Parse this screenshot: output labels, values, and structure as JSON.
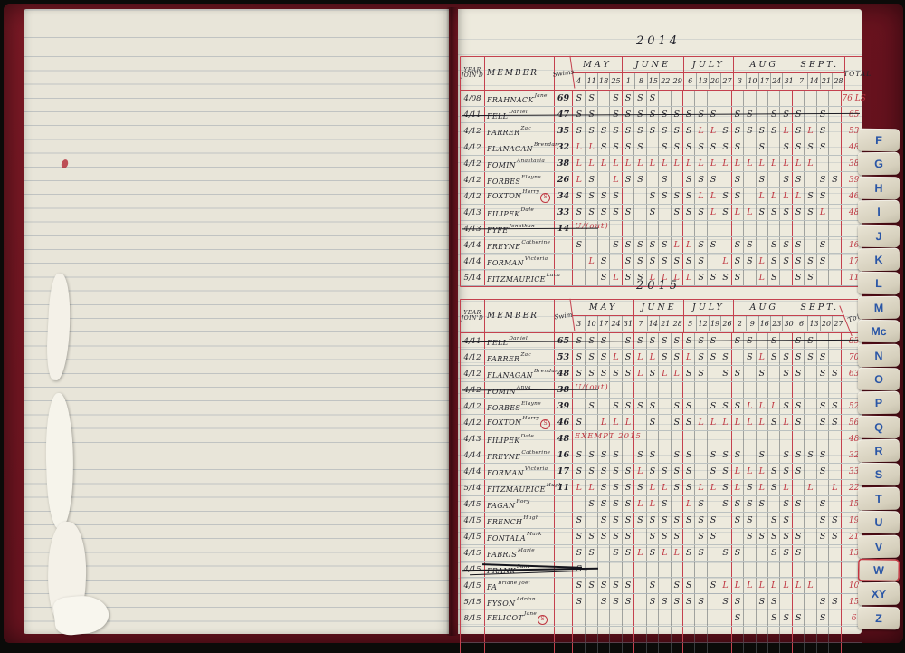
{
  "index_tabs": {
    "letters": [
      "F",
      "G",
      "H",
      "I",
      "J",
      "K",
      "L",
      "M",
      "Mc",
      "N",
      "O",
      "P",
      "Q",
      "R",
      "S",
      "T",
      "U",
      "V",
      "W",
      "XY",
      "Z"
    ],
    "highlighted": "W"
  },
  "colors": {
    "table_rule_red": "#c4414e",
    "red_ink": "#bf3540",
    "black_ink": "#23232b",
    "tab_letter_blue": "#2a56a6"
  },
  "legend": {
    "present_mark": "S",
    "late_mark": "L"
  },
  "tables": [
    {
      "title": "2014",
      "headers": {
        "join_line1": "YEAR",
        "join_line2": "JOIN'D",
        "member": "MEMBER",
        "swims": "Swims",
        "total": "TOTAL"
      },
      "months": [
        {
          "label": "MAY",
          "dates": [
            "4",
            "11",
            "18",
            "25"
          ]
        },
        {
          "label": "JUNE",
          "dates": [
            "1",
            "8",
            "15",
            "22",
            "29"
          ]
        },
        {
          "label": "JULY",
          "dates": [
            "6",
            "13",
            "20",
            "27"
          ]
        },
        {
          "label": "AUG",
          "dates": [
            "3",
            "10",
            "17",
            "24",
            "31"
          ]
        },
        {
          "label": "SEPT.",
          "dates": [
            "7",
            "14",
            "21",
            "28"
          ]
        }
      ],
      "rows": [
        {
          "joined": "4/08",
          "surname": "FRAHNACK",
          "first": "Jane",
          "swims": "69",
          "marks": "SS.SSSS...............",
          "total": "76 LS"
        },
        {
          "joined": "4/11",
          "surname": "FELL",
          "first": "Daniel",
          "swims": "47",
          "marks": "SS.SSSSSSSSS.SS.SSS.S.",
          "total": "65",
          "struck": "full"
        },
        {
          "joined": "4/12",
          "surname": "FARRER",
          "first": "Zac",
          "swims": "35",
          "marks": "SSSSSSSSSSLLSSSSSLSLS.",
          "total": "53"
        },
        {
          "joined": "4/12",
          "surname": "FLANAGAN",
          "first": "Brendan",
          "swims": "32",
          "marks": "LLSSSS.SSSSSSS.S.SSSS.",
          "total": "48"
        },
        {
          "joined": "4/12",
          "surname": "FOMIN",
          "first": "Anastasia",
          "swims": "38",
          "marks": "LLLLLLLLLLLLLLLLLLLL..",
          "total": "38"
        },
        {
          "joined": "4/12",
          "surname": "FORBES",
          "first": "Elayne",
          "swims": "26",
          "marks": "LS.LSS.S.SSS.S.S.SS.SS",
          "total": "39"
        },
        {
          "joined": "4/12",
          "surname": "FOXTON",
          "first": "Harry",
          "swims": "34",
          "marks": "SSSS..SSSSLLSS.LLLLSS.",
          "total": "46",
          "circled": true
        },
        {
          "joined": "4/13",
          "surname": "FILIPEK",
          "first": "Dale",
          "swims": "33",
          "marks": "SSSSS.S.SSSLSLLSSSSSL.",
          "total": "48"
        },
        {
          "joined": "4/13",
          "surname": "FYFE",
          "first": "Jonathan",
          "swims": "14",
          "marks": "",
          "note": "U/(out)",
          "total": "",
          "struck": "name"
        },
        {
          "joined": "4/14",
          "surname": "FREYNE",
          "first": "Catherine",
          "swims": "",
          "marks": "S..SSSSSLLSS.SS.SSS.S.",
          "total": "16"
        },
        {
          "joined": "4/14",
          "surname": "FORMAN",
          "first": "Victoria",
          "swims": "",
          "marks": ".LS.SSSSSSS.LSSLSSSSS.",
          "total": "17"
        },
        {
          "joined": "5/14",
          "surname": "FITZMAURICE",
          "first": "Luca",
          "swims": "",
          "marks": "..SLSSLLLLSSSS.LS.SS..",
          "total": "11"
        }
      ]
    },
    {
      "title": "2015",
      "headers": {
        "join_line1": "YEAR",
        "join_line2": "JOIN'D",
        "member": "MEMBER",
        "swims": "Swim",
        "total": "Total"
      },
      "months": [
        {
          "label": "MAY",
          "dates": [
            "3",
            "10",
            "17",
            "24",
            "31"
          ]
        },
        {
          "label": "JUNE",
          "dates": [
            "7",
            "14",
            "21",
            "28"
          ]
        },
        {
          "label": "JULY",
          "dates": [
            "5",
            "12",
            "19",
            "26"
          ]
        },
        {
          "label": "AUG",
          "dates": [
            "2",
            "9",
            "16",
            "23",
            "30"
          ]
        },
        {
          "label": "SEPT.",
          "dates": [
            "6",
            "13",
            "20",
            "27"
          ]
        }
      ],
      "rows": [
        {
          "joined": "4/11",
          "surname": "FELL",
          "first": "Daniel",
          "swims": "65",
          "marks": "SSS.SSSSSSSS.SS.S.SS..",
          "total": "83",
          "struck": "full"
        },
        {
          "joined": "4/12",
          "surname": "FARRER",
          "first": "Zac",
          "swims": "53",
          "marks": "SSSLSLLSSLSSS.SLSSSSS.",
          "total": "70"
        },
        {
          "joined": "4/12",
          "surname": "FLANAGAN",
          "first": "Brendan",
          "swims": "48",
          "marks": "SSSSSLSLLSS.SS.S.SS.SS",
          "total": "63"
        },
        {
          "joined": "4/12",
          "surname": "FOMIN",
          "first": "Anya",
          "swims": "38",
          "marks": "",
          "note": "U/(out).",
          "total": "",
          "struck": "name"
        },
        {
          "joined": "4/12",
          "surname": "FORBES",
          "first": "Elayne",
          "swims": "39",
          "marks": ".S.SSSS.SS.SSSLLLSS.SS",
          "total": "52"
        },
        {
          "joined": "4/12",
          "surname": "FOXTON",
          "first": "Harry",
          "swims": "46",
          "marks": "S.LLL.S.SSLLLLLLSLS.SS",
          "total": "56",
          "circled": true
        },
        {
          "joined": "4/13",
          "surname": "FILIPEK",
          "first": "Dale",
          "swims": "48",
          "marks": "",
          "note": "EXEMPT 2015",
          "total": "48"
        },
        {
          "joined": "4/14",
          "surname": "FREYNE",
          "first": "Catherine",
          "swims": "16",
          "marks": "SSSS.SS.SS.SSS.S.SSSS.",
          "total": "32"
        },
        {
          "joined": "4/14",
          "surname": "FORMAN",
          "first": "Victoria",
          "swims": "17",
          "marks": "SSSSSLSSSS.SSLLLSSS.S.",
          "total": "33"
        },
        {
          "joined": "5/14",
          "surname": "FITZMAURICE",
          "first": "Hugh",
          "swims": "11",
          "marks": "LLSSSSLLSSLLSLSLSL.L.L",
          "total": "22"
        },
        {
          "joined": "4/15",
          "surname": "FAGAN",
          "first": "Rory",
          "swims": "",
          "marks": ".SSSSLLS.LS.SSSS.SS.S.",
          "total": "15"
        },
        {
          "joined": "4/15",
          "surname": "FRENCH",
          "first": "Hugh",
          "swims": "",
          "marks": "S.SSSSSSSSSS.SS.SS..SS",
          "total": "19"
        },
        {
          "joined": "4/15",
          "surname": "FONTALA",
          "first": "Mark",
          "swims": "",
          "marks": "SSSSS.SSS.SS..SSSSS.SS",
          "total": "21"
        },
        {
          "joined": "4/15",
          "surname": "FABRIS",
          "first": "Marie",
          "swims": "",
          "marks": "SS.SSLSLLSS.SS..SSS...",
          "total": "13"
        },
        {
          "joined": "4/15",
          "surname": "FRANK",
          "first": "Sam",
          "swims": "",
          "marks": "S.....................",
          "total": "",
          "struck": "heavy"
        },
        {
          "joined": "4/15",
          "surname": "FA",
          "first": "Briane Joel",
          "swims": "",
          "marks": "SSSSS.S.SS.SLLLLLLLL..",
          "total": "10"
        },
        {
          "joined": "5/15",
          "surname": "FYSON",
          "first": "Adrian",
          "swims": "",
          "marks": "S.SSS.SSSSS.SS.SS...SS",
          "total": "15"
        },
        {
          "joined": "8/15",
          "surname": "FELICOT",
          "first": "Jane",
          "swims": "",
          "marks": ".............S..SSS.S.",
          "total": "6",
          "circled": true
        }
      ]
    }
  ]
}
